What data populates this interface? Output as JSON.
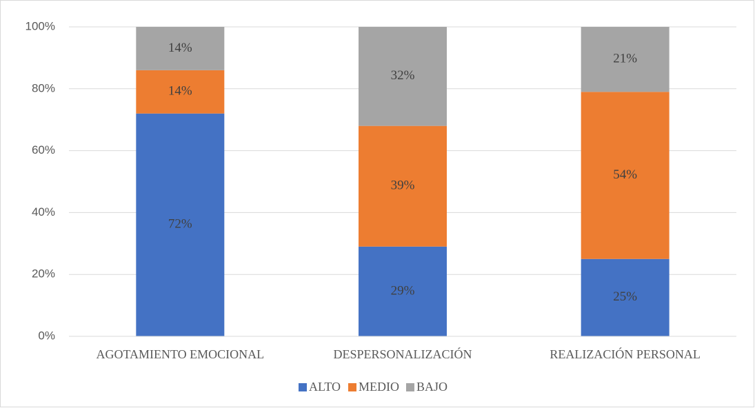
{
  "chart_data": {
    "type": "stacked_bar",
    "categories": [
      "AGOTAMIENTO EMOCIONAL",
      "DESPERSONALIZACIÓN",
      "REALIZACIÓN PERSONAL"
    ],
    "series": [
      {
        "name": "ALTO",
        "color": "#4472c4",
        "values": [
          72,
          29,
          25
        ],
        "value_labels": [
          "72%",
          "29%",
          "25%"
        ]
      },
      {
        "name": "MEDIO",
        "color": "#ed7d31",
        "values": [
          14,
          39,
          54
        ],
        "value_labels": [
          "14%",
          "39%",
          "54%"
        ]
      },
      {
        "name": "BAJO",
        "color": "#a5a5a5",
        "values": [
          14,
          32,
          21
        ],
        "value_labels": [
          "14%",
          "32%",
          "21%"
        ]
      }
    ],
    "ylim": [
      0,
      100
    ],
    "yticks": [
      {
        "value": 0,
        "label": "0%"
      },
      {
        "value": 20,
        "label": "20%"
      },
      {
        "value": 40,
        "label": "40%"
      },
      {
        "value": 60,
        "label": "60%"
      },
      {
        "value": 80,
        "label": "80%"
      },
      {
        "value": 100,
        "label": "100%"
      }
    ],
    "grid": true,
    "legend": "bottom"
  }
}
